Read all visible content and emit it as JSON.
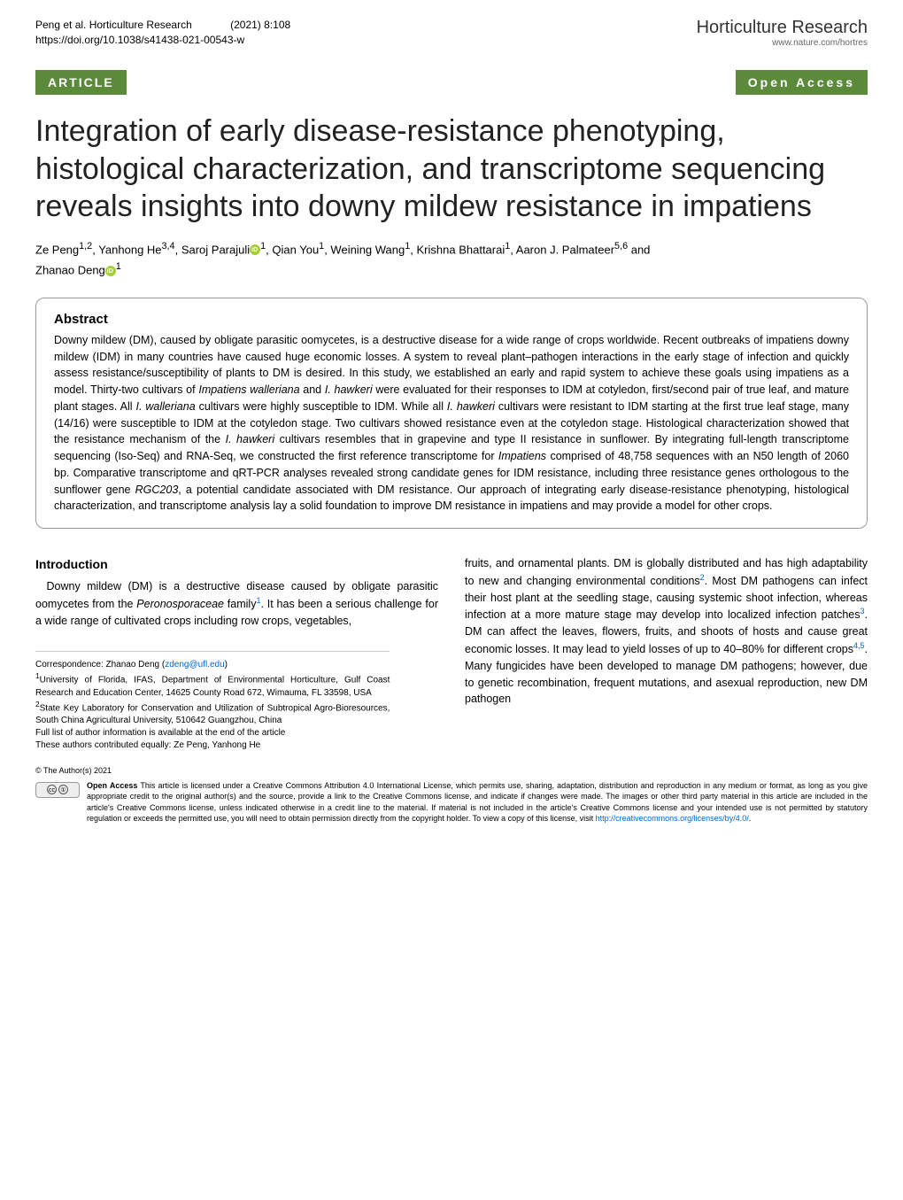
{
  "header": {
    "citation_line1": "Peng et al. Horticulture Research",
    "citation_year": "(2021) 8:108",
    "doi": "https://doi.org/10.1038/s41438-021-00543-w",
    "journal_name": "Horticulture Research",
    "journal_url": "www.nature.com/hortres"
  },
  "meta": {
    "article_tag": "ARTICLE",
    "open_access": "Open Access"
  },
  "title": "Integration of early disease-resistance phenotyping, histological characterization, and transcriptome sequencing reveals insights into downy mildew resistance in impatiens",
  "authors": {
    "line1_a": "Ze Peng",
    "sup1": "1,2",
    "line1_b": ", Yanhong He",
    "sup2": "3,4",
    "line1_c": ", Saroj Parajuli",
    "sup3": "1",
    "line1_d": ", Qian You",
    "sup4": "1",
    "line1_e": ", Weining Wang",
    "sup5": "1",
    "line1_f": ", Krishna Bhattarai",
    "sup6": "1",
    "line1_g": ", Aaron J. Palmateer",
    "sup7": "5,6",
    "line1_h": " and",
    "line2_a": "Zhanao Deng",
    "sup8": "1"
  },
  "abstract": {
    "title": "Abstract",
    "text_1": "Downy mildew (DM), caused by obligate parasitic oomycetes, is a destructive disease for a wide range of crops worldwide. Recent outbreaks of impatiens downy mildew (IDM) in many countries have caused huge economic losses. A system to reveal plant–pathogen interactions in the early stage of infection and quickly assess resistance/susceptibility of plants to DM is desired. In this study, we established an early and rapid system to achieve these goals using impatiens as a model. Thirty-two cultivars of ",
    "italic_1": "Impatiens walleriana",
    "text_2": " and ",
    "italic_2": "I. hawkeri",
    "text_3": " were evaluated for their responses to IDM at cotyledon, first/second pair of true leaf, and mature plant stages. All ",
    "italic_3": "I. walleriana",
    "text_4": " cultivars were highly susceptible to IDM. While all ",
    "italic_4": "I. hawkeri",
    "text_5": " cultivars were resistant to IDM starting at the first true leaf stage, many (14/16) were susceptible to IDM at the cotyledon stage. Two cultivars showed resistance even at the cotyledon stage. Histological characterization showed that the resistance mechanism of the ",
    "italic_5": "I. hawkeri",
    "text_6": " cultivars resembles that in grapevine and type II resistance in sunflower. By integrating full-length transcriptome sequencing (Iso-Seq) and RNA-Seq, we constructed the first reference transcriptome for ",
    "italic_6": "Impatiens",
    "text_7": " comprised of 48,758 sequences with an N50 length of 2060 bp. Comparative transcriptome and qRT-PCR analyses revealed strong candidate genes for IDM resistance, including three resistance genes orthologous to the sunflower gene ",
    "italic_7": "RGC203",
    "text_8": ", a potential candidate associated with DM resistance. Our approach of integrating early disease-resistance phenotyping, histological characterization, and transcriptome analysis lay a solid foundation to improve DM resistance in impatiens and may provide a model for other crops."
  },
  "intro": {
    "title": "Introduction",
    "p1_a": "Downy mildew (DM) is a destructive disease caused by obligate parasitic oomycetes from the ",
    "p1_italic": "Peronosporaceae",
    "p1_b": " family",
    "p1_ref1": "1",
    "p1_c": ". It has been a serious challenge for a wide range of cultivated crops including row crops, vegetables,",
    "p2_a": "fruits, and ornamental plants. DM is globally distributed and has high adaptability to new and changing environmental conditions",
    "p2_ref1": "2",
    "p2_b": ". Most DM pathogens can infect their host plant at the seedling stage, causing systemic shoot infection, whereas infection at a more mature stage may develop into localized infection patches",
    "p2_ref2": "3",
    "p2_c": ". DM can affect the leaves, flowers, fruits, and shoots of hosts and cause great economic losses. It may lead to yield losses of up to 40–80% for different crops",
    "p2_ref3": "4,5",
    "p2_d": ". Many fungicides have been developed to manage DM pathogens; however, due to genetic recombination, frequent mutations, and asexual reproduction, new DM pathogen"
  },
  "correspondence": {
    "line1": "Correspondence: Zhanao Deng (",
    "email": "zdeng@ufl.edu",
    "line1_end": ")",
    "aff1_sup": "1",
    "aff1": "University of Florida, IFAS, Department of Environmental Horticulture, Gulf Coast Research and Education Center, 14625 County Road 672, Wimauma, FL 33598, USA",
    "aff2_sup": "2",
    "aff2": "State Key Laboratory for Conservation and Utilization of Subtropical Agro-Bioresources, South China Agricultural University, 510642 Guangzhou, China",
    "full_list": "Full list of author information is available at the end of the article",
    "equal": "These authors contributed equally: Ze Peng, Yanhong He"
  },
  "footer": {
    "copyright": "© The Author(s) 2021",
    "license_a": "Open Access",
    "license_b": " This article is licensed under a Creative Commons Attribution 4.0 International License, which permits use, sharing, adaptation, distribution and reproduction in any medium or format, as long as you give appropriate credit to the original author(s) and the source, provide a link to the Creative Commons license, and indicate if changes were made. The images or other third party material in this article are included in the article's Creative Commons license, unless indicated otherwise in a credit line to the material. If material is not included in the article's Creative Commons license and your intended use is not permitted by statutory regulation or exceeds the permitted use, you will need to obtain permission directly from the copyright holder. To view a copy of this license, visit ",
    "license_url": "http://creativecommons.org/licenses/by/4.0/",
    "license_end": "."
  }
}
